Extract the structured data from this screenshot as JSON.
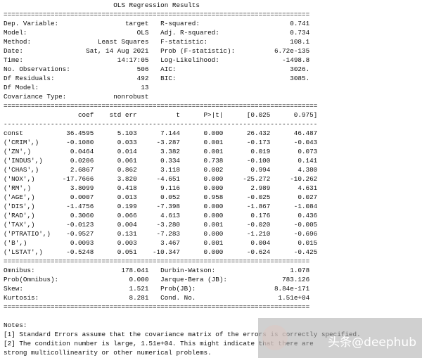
{
  "title": "OLS Regression Results",
  "rule_eq": "================================================================================",
  "rule_dash": "--------------------------------------------------------------------------------",
  "summary": [
    [
      "Dep. Variable:",
      "target",
      "R-squared:",
      "0.741"
    ],
    [
      "Model:",
      "OLS",
      "Adj. R-squared:",
      "0.734"
    ],
    [
      "Method:",
      "Least Squares",
      "F-statistic:",
      "108.1"
    ],
    [
      "Date:",
      "Sat, 14 Aug 2021",
      "Prob (F-statistic):",
      "6.72e-135"
    ],
    [
      "Time:",
      "14:17:05",
      "Log-Likelihood:",
      "-1498.8"
    ],
    [
      "No. Observations:",
      "506",
      "AIC:",
      "3026."
    ],
    [
      "Df Residuals:",
      "492",
      "BIC:",
      "3085."
    ],
    [
      "Df Model:",
      "13",
      "",
      ""
    ],
    [
      "Covariance Type:",
      "nonrobust",
      "",
      ""
    ]
  ],
  "coef_headers": [
    "",
    "coef",
    "std err",
    "t",
    "P>|t|",
    "[0.025",
    "0.975]"
  ],
  "coef_rows": [
    [
      "const",
      "36.4595",
      "5.103",
      "7.144",
      "0.000",
      "26.432",
      "46.487"
    ],
    [
      "('CRIM',)",
      "-0.1080",
      "0.033",
      "-3.287",
      "0.001",
      "-0.173",
      "-0.043"
    ],
    [
      "('ZN',)",
      "0.0464",
      "0.014",
      "3.382",
      "0.001",
      "0.019",
      "0.073"
    ],
    [
      "('INDUS',)",
      "0.0206",
      "0.061",
      "0.334",
      "0.738",
      "-0.100",
      "0.141"
    ],
    [
      "('CHAS',)",
      "2.6867",
      "0.862",
      "3.118",
      "0.002",
      "0.994",
      "4.380"
    ],
    [
      "('NOX',)",
      "-17.7666",
      "3.820",
      "-4.651",
      "0.000",
      "-25.272",
      "-10.262"
    ],
    [
      "('RM',)",
      "3.8099",
      "0.418",
      "9.116",
      "0.000",
      "2.989",
      "4.631"
    ],
    [
      "('AGE',)",
      "0.0007",
      "0.013",
      "0.052",
      "0.958",
      "-0.025",
      "0.027"
    ],
    [
      "('DIS',)",
      "-1.4756",
      "0.199",
      "-7.398",
      "0.000",
      "-1.867",
      "-1.084"
    ],
    [
      "('RAD',)",
      "0.3060",
      "0.066",
      "4.613",
      "0.000",
      "0.176",
      "0.436"
    ],
    [
      "('TAX',)",
      "-0.0123",
      "0.004",
      "-3.280",
      "0.001",
      "-0.020",
      "-0.005"
    ],
    [
      "('PTRATIO',)",
      "-0.9527",
      "0.131",
      "-7.283",
      "0.000",
      "-1.210",
      "-0.696"
    ],
    [
      "('B',)",
      "0.0093",
      "0.003",
      "3.467",
      "0.001",
      "0.004",
      "0.015"
    ],
    [
      "('LSTAT',)",
      "-0.5248",
      "0.051",
      "-10.347",
      "0.000",
      "-0.624",
      "-0.425"
    ]
  ],
  "diagnostics": [
    [
      "Omnibus:",
      "178.041",
      "Durbin-Watson:",
      "1.078"
    ],
    [
      "Prob(Omnibus):",
      "0.000",
      "Jarque-Bera (JB):",
      "783.126"
    ],
    [
      "Skew:",
      "1.521",
      "Prob(JB):",
      "8.84e-171"
    ],
    [
      "Kurtosis:",
      "8.281",
      "Cond. No.",
      "1.51e+04"
    ]
  ],
  "notes_heading": "Notes:",
  "notes": [
    "[1] Standard Errors assume that the covariance matrix of the errors is correctly specified.",
    "[2] The condition number is large, 1.51e+04. This might indicate that there are",
    "strong multicollinearity or other numerical problems."
  ],
  "watermark": "头条@deephub"
}
